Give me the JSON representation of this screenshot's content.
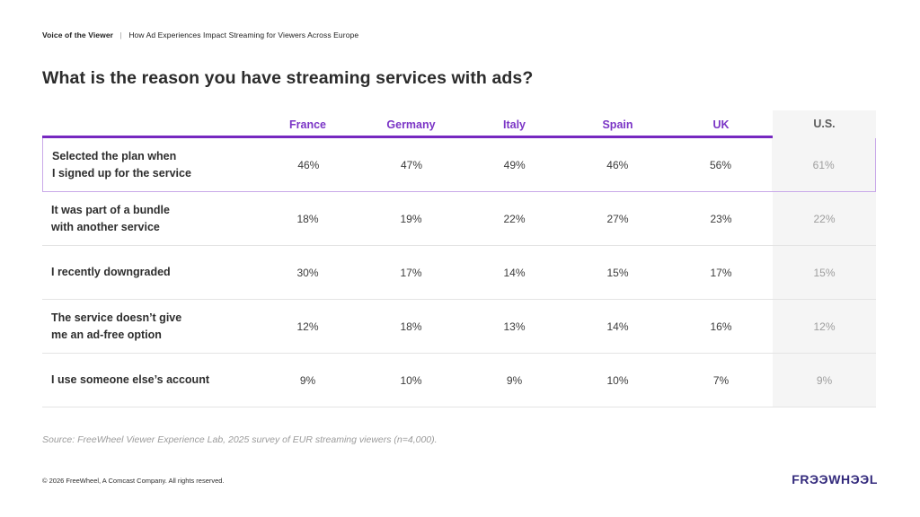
{
  "meta": {
    "brand": "Voice of the Viewer",
    "separator": "|",
    "subtitle": "How Ad Experiences Impact Streaming for Viewers Across Europe"
  },
  "title": "What is the reason you have streaming services with ads?",
  "chart_data": {
    "type": "table",
    "title": "What is the reason you have streaming services with ads?",
    "columns": [
      "France",
      "Germany",
      "Italy",
      "Spain",
      "UK",
      "U.S."
    ],
    "rows": [
      {
        "label": "Selected the plan when I signed up for the service",
        "values_pct": [
          46,
          47,
          49,
          46,
          56,
          61
        ],
        "highlighted": true
      },
      {
        "label": "It was part of a bundle with another service",
        "values_pct": [
          18,
          19,
          22,
          27,
          23,
          22
        ],
        "highlighted": false
      },
      {
        "label": "I recently downgraded",
        "values_pct": [
          30,
          17,
          14,
          15,
          17,
          15
        ],
        "highlighted": false
      },
      {
        "label": "The service doesn’t give me an ad-free option",
        "values_pct": [
          12,
          18,
          13,
          14,
          16,
          12
        ],
        "highlighted": false
      },
      {
        "label": "I use someone else’s account",
        "values_pct": [
          9,
          10,
          9,
          10,
          7,
          9
        ],
        "highlighted": false
      }
    ],
    "layout_hints": {
      "highlight_row_index": 0,
      "us_column_shaded": true
    }
  },
  "table": {
    "columns": [
      "France",
      "Germany",
      "Italy",
      "Spain",
      "UK",
      "U.S."
    ],
    "rows": [
      {
        "label_lines": [
          "Selected the plan when",
          "I signed up for the service"
        ],
        "values": [
          "46%",
          "47%",
          "49%",
          "46%",
          "56%",
          "61%"
        ]
      },
      {
        "label_lines": [
          "It was part of a bundle",
          "with another service"
        ],
        "values": [
          "18%",
          "19%",
          "22%",
          "27%",
          "23%",
          "22%"
        ]
      },
      {
        "label_lines": [
          "I recently downgraded"
        ],
        "values": [
          "30%",
          "17%",
          "14%",
          "15%",
          "17%",
          "15%"
        ]
      },
      {
        "label_lines": [
          "The service doesn’t give",
          "me an ad-free option"
        ],
        "values": [
          "12%",
          "18%",
          "13%",
          "14%",
          "16%",
          "12%"
        ]
      },
      {
        "label_lines": [
          "I use someone else’s account"
        ],
        "values": [
          "9%",
          "10%",
          "9%",
          "10%",
          "7%",
          "9%"
        ]
      }
    ]
  },
  "source": "Source: FreeWheel Viewer Experience Lab, 2025 survey of EUR streaming viewers (n=4,000).",
  "footer": {
    "copyright": "© 2026 FreeWheel, A Comcast Company. All rights reserved.",
    "logo_text": "FRЭЭWHЭЭL"
  },
  "colors": {
    "accent_purple": "#7628c0",
    "header_text_purple": "#7b35c6",
    "highlight_border": "#c9a9e9",
    "us_column_bg": "#f5f5f5",
    "us_value_text": "#9e9e9e",
    "logo_purple": "#332a7c"
  }
}
